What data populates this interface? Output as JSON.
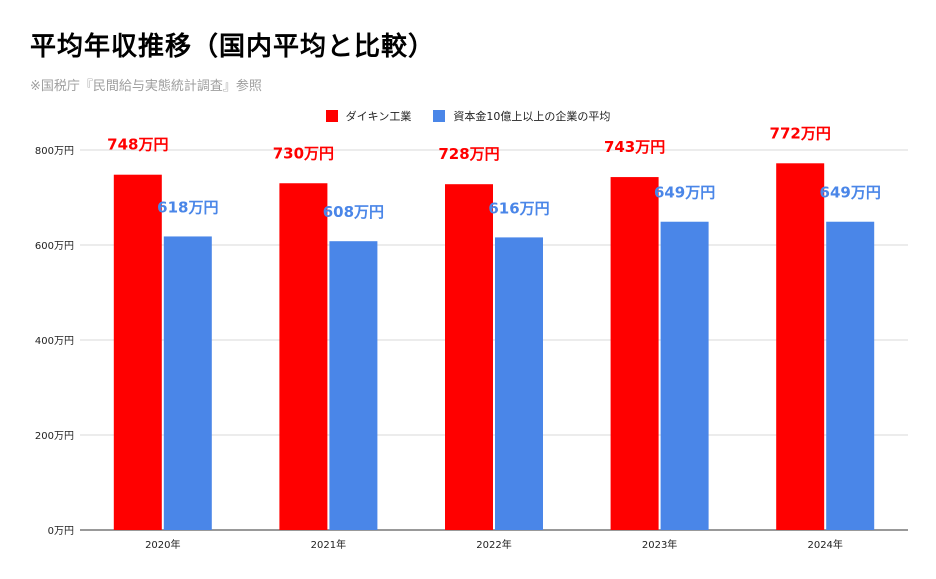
{
  "header": {
    "title": "平均年収推移（国内平均と比較）",
    "source": "※国税庁『民間給与実態統計調査』参照"
  },
  "chart_data": {
    "type": "bar",
    "categories": [
      "2020年",
      "2021年",
      "2022年",
      "2023年",
      "2024年"
    ],
    "series": [
      {
        "name": "ダイキン工業",
        "color": "#ff0000",
        "values": [
          748,
          730,
          728,
          743,
          772
        ],
        "labels": [
          "748万円",
          "730万円",
          "728万円",
          "743万円",
          "772万円"
        ]
      },
      {
        "name": "資本金10億上以上の企業の平均",
        "color": "#4a86e8",
        "values": [
          618,
          608,
          616,
          649,
          649
        ],
        "labels": [
          "618万円",
          "608万円",
          "616万円",
          "649万円",
          "649万円"
        ]
      }
    ],
    "yticks": [
      {
        "value": 0,
        "label": "0万円"
      },
      {
        "value": 200,
        "label": "200万円"
      },
      {
        "value": 400,
        "label": "400万円"
      },
      {
        "value": 600,
        "label": "600万円"
      },
      {
        "value": 800,
        "label": "800万円"
      }
    ],
    "ylim": [
      0,
      800
    ],
    "grid": true,
    "legend_position": "top"
  }
}
